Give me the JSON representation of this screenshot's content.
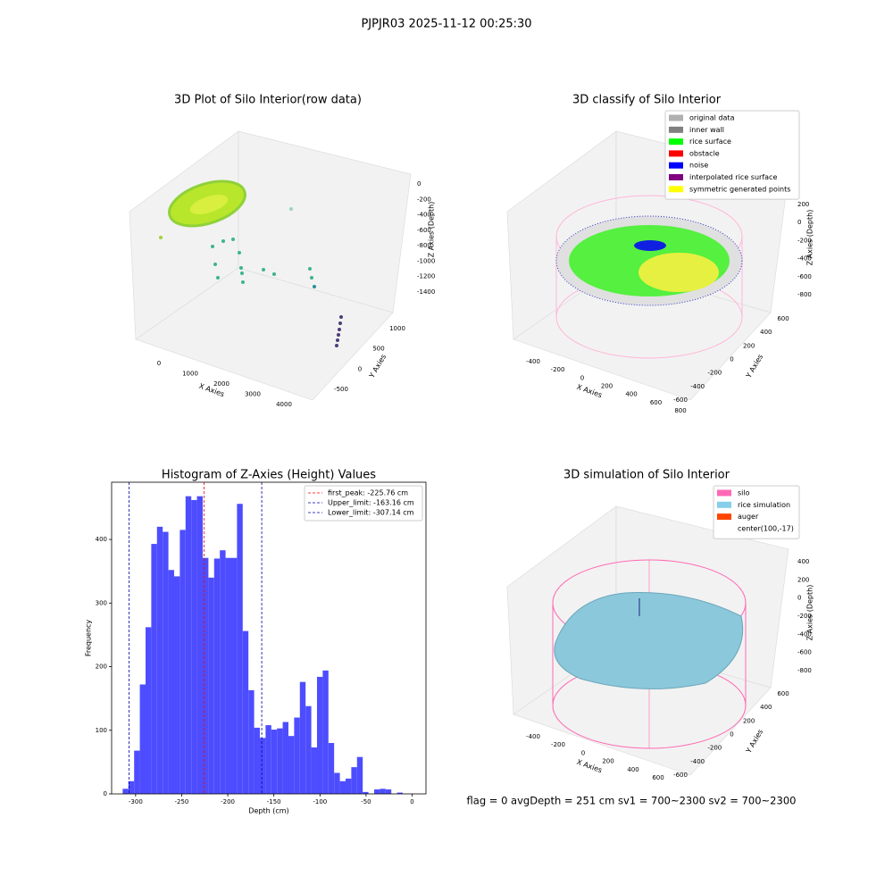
{
  "suptitle": "PJPJR03 2025-11-12 00:25:30",
  "chart_data": [
    {
      "type": "scatter3d",
      "title": "3D Plot of Silo Interior(row data)",
      "xlabel": "X Axies",
      "ylabel": "Y Axies",
      "zlabel": "Z Axies (Depth)",
      "xticks": [
        0,
        1000,
        2000,
        3000,
        4000
      ],
      "yticks": [
        -500,
        0,
        500,
        1000
      ],
      "zticks": [
        0,
        -200,
        -400,
        -600,
        -800,
        -1000,
        -1200,
        -1400
      ]
    },
    {
      "type": "scatter3d",
      "title": "3D classify of Silo Interior",
      "xlabel": "X Axies",
      "ylabel": "Y Axies",
      "zlabel": "Z Axies (Depth)",
      "xticks": [
        -400,
        -200,
        0,
        200,
        400,
        600,
        800
      ],
      "yticks": [
        -600,
        -400,
        -200,
        0,
        200,
        400,
        600
      ],
      "zticks": [
        200,
        0,
        -200,
        -400,
        -600,
        -800
      ],
      "legend": [
        {
          "name": "original data",
          "color": "#b0b0b0"
        },
        {
          "name": "inner wall",
          "color": "#808080"
        },
        {
          "name": "rice surface",
          "color": "#00ff00"
        },
        {
          "name": "obstacle",
          "color": "#ff0000"
        },
        {
          "name": "noise",
          "color": "#0000ff"
        },
        {
          "name": "interpolated rice surface",
          "color": "#800080"
        },
        {
          "name": "symmetric generated points",
          "color": "#ffff00"
        }
      ]
    },
    {
      "type": "histogram",
      "title": "Histogram of Z-Axies (Height) Values",
      "xlabel": "Depth (cm)",
      "ylabel": "Frequency",
      "color": "#4d4dff",
      "bins": [
        -314,
        -307.8,
        -301.6,
        -295.4,
        -289.2,
        -283,
        -276.8,
        -270.6,
        -264.4,
        -258.2,
        -252,
        -245.8,
        -239.6,
        -233.4,
        -227.2,
        -221,
        -214.8,
        -208.6,
        -202.4,
        -196.2,
        -190,
        -183.8,
        -177.6,
        -171.4,
        -165.2,
        -159,
        -152.8,
        -146.6,
        -140.4,
        -134.2,
        -128,
        -121.8,
        -115.6,
        -109.4,
        -103.2,
        -97,
        -90.8,
        -84.6,
        -78.4,
        -72.2,
        -66,
        -59.8,
        -53.6,
        -47.4,
        -41.2,
        -35,
        -28.8,
        -22.6,
        -16.4,
        -10.2,
        -4
      ],
      "values": [
        8,
        20,
        68,
        172,
        262,
        393,
        420,
        412,
        352,
        342,
        415,
        468,
        462,
        468,
        371,
        340,
        370,
        383,
        371,
        371,
        456,
        256,
        163,
        104,
        88,
        108,
        101,
        103,
        113,
        91,
        120,
        176,
        138,
        73,
        184,
        194,
        80,
        33,
        20,
        24,
        42,
        58,
        3,
        0,
        7,
        8,
        7,
        0,
        2,
        0
      ],
      "xlim": [
        -326,
        15
      ],
      "ylim": [
        0,
        490
      ],
      "xticks": [
        -300,
        -250,
        -200,
        -150,
        -100,
        -50,
        0
      ],
      "yticks": [
        0,
        100,
        200,
        300,
        400
      ],
      "lines": [
        {
          "label": "first_peak: -225.76 cm",
          "value": -225.76,
          "color": "#ff0000"
        },
        {
          "label": "Upper_limit: -163.16 cm",
          "value": -163.16,
          "color": "#0000aa"
        },
        {
          "label": "Lower_limit: -307.14 cm",
          "value": -307.14,
          "color": "#0000aa"
        }
      ],
      "legend_loc": "upper right"
    },
    {
      "type": "surface3d",
      "title": "3D simulation of Silo Interior",
      "xlabel": "X Axies",
      "ylabel": "Y Axies",
      "zlabel": "Z Axies (Depth)",
      "xticks": [
        -400,
        -200,
        0,
        200,
        400,
        600
      ],
      "yticks": [
        -600,
        -400,
        -200,
        0,
        200,
        400,
        600
      ],
      "zticks": [
        400,
        200,
        0,
        -200,
        -400,
        -600,
        -800
      ],
      "legend": [
        {
          "name": "silo",
          "color": "#ff69b4"
        },
        {
          "name": "rice simulation",
          "color": "#87ceeb"
        },
        {
          "name": "auger",
          "color": "#ff4500"
        },
        {
          "name": "center(100,-17)"
        }
      ],
      "annotation": "flag = 0     avgDepth = 251 cm  sv1 = 700~2300  sv2 = 700~2300"
    }
  ]
}
